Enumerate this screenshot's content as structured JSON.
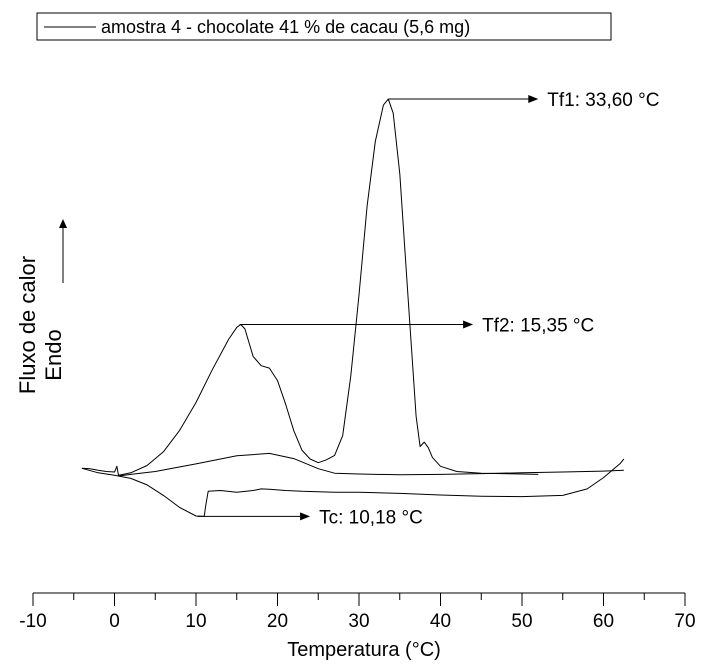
{
  "chart_data": {
    "type": "line",
    "title": "",
    "xlabel": "Temperatura (°C)",
    "ylabel_line1": "Fluxo de calor",
    "ylabel_line2": "Endo",
    "xlim": [
      -10,
      70
    ],
    "ylim": [
      0,
      100
    ],
    "x_major_ticks": [
      -10,
      0,
      10,
      20,
      30,
      40,
      50,
      60,
      70
    ],
    "x_tick_labels": [
      "-10",
      "0",
      "10",
      "20",
      "30",
      "40",
      "50",
      "60",
      "70"
    ],
    "y_axis_ticks": "none",
    "grid": false,
    "legend": {
      "placement": "top-left",
      "entries": [
        "amostra 4 - chocolate 41 % de cacau (5,6 mg)"
      ]
    },
    "series": [
      {
        "name": "amostra 4 - chocolate 41 % de cacau (5,6 mg)",
        "color": "#000000",
        "segments": [
          {
            "x": [
              -4,
              -2,
              0,
              2,
              4,
              6,
              8,
              10,
              11,
              11.2,
              11.5,
              13,
              15,
              17,
              18,
              19,
              21,
              23,
              25,
              27,
              28,
              30,
              35,
              40,
              45,
              50,
              55,
              58,
              60,
              62,
              62.5
            ],
            "y": [
              7.1,
              6.0,
              5.4,
              4.6,
              3.0,
              0.4,
              -2.6,
              -4.7,
              -4.8,
              -2.0,
              1.4,
              1.6,
              1.2,
              1.6,
              2.0,
              1.9,
              1.6,
              1.4,
              1.3,
              1.2,
              1.2,
              1.2,
              0.9,
              0.5,
              0.2,
              0.1,
              0.4,
              2.0,
              4.8,
              8.2,
              9.4
            ]
          },
          {
            "x": [
              62.5,
              60,
              55,
              50,
              45,
              40,
              35,
              30,
              27,
              25,
              22,
              19,
              15,
              10,
              5,
              2,
              0.5,
              0.3,
              0.0,
              -1,
              -2,
              -3,
              -4
            ],
            "y": [
              6.6,
              6.4,
              6.2,
              6.0,
              5.8,
              5.6,
              5.5,
              5.7,
              5.9,
              7.0,
              9.5,
              10.8,
              10.2,
              8.2,
              6.3,
              5.6,
              5.2,
              7.6,
              6.2,
              6.3,
              6.6,
              7.0,
              7.1
            ]
          },
          {
            "x": [
              0.5,
              2,
              4,
              6,
              8,
              10,
              12,
              14,
              15,
              15.5,
              16,
              17,
              18,
              19,
              20,
              21,
              22,
              23,
              24,
              25,
              26,
              27,
              28,
              29,
              30,
              31,
              32,
              33,
              33.6,
              34.2,
              35,
              36,
              37,
              37.5,
              38,
              38.5,
              39,
              40,
              42,
              45,
              50,
              52
            ],
            "y": [
              5.4,
              6.0,
              7.8,
              11.2,
              16.5,
              23.4,
              31.5,
              39.0,
              42.0,
              42.7,
              41.6,
              34.8,
              32.5,
              31.9,
              28.8,
              23.0,
              16.4,
              11.6,
              9.4,
              8.5,
              9.2,
              10.3,
              15.2,
              30.0,
              50.0,
              72.0,
              88.0,
              97.0,
              98.5,
              95.0,
              80.0,
              50.0,
              20.0,
              12.5,
              13.6,
              12.2,
              9.8,
              7.6,
              6.3,
              5.9,
              5.7,
              5.6
            ]
          }
        ]
      }
    ],
    "annotations": [
      {
        "label": "Tf1: 33,60 °C",
        "x": 33.6,
        "y": 98.5,
        "arrow_to_x": 52
      },
      {
        "label": "Tf2: 15,35 °C",
        "x": 15.35,
        "y": 42.7,
        "arrow_to_x": 44
      },
      {
        "label": "Tc: 10,18 °C",
        "x": 10.18,
        "y": -4.8,
        "arrow_to_x": 24
      }
    ]
  }
}
